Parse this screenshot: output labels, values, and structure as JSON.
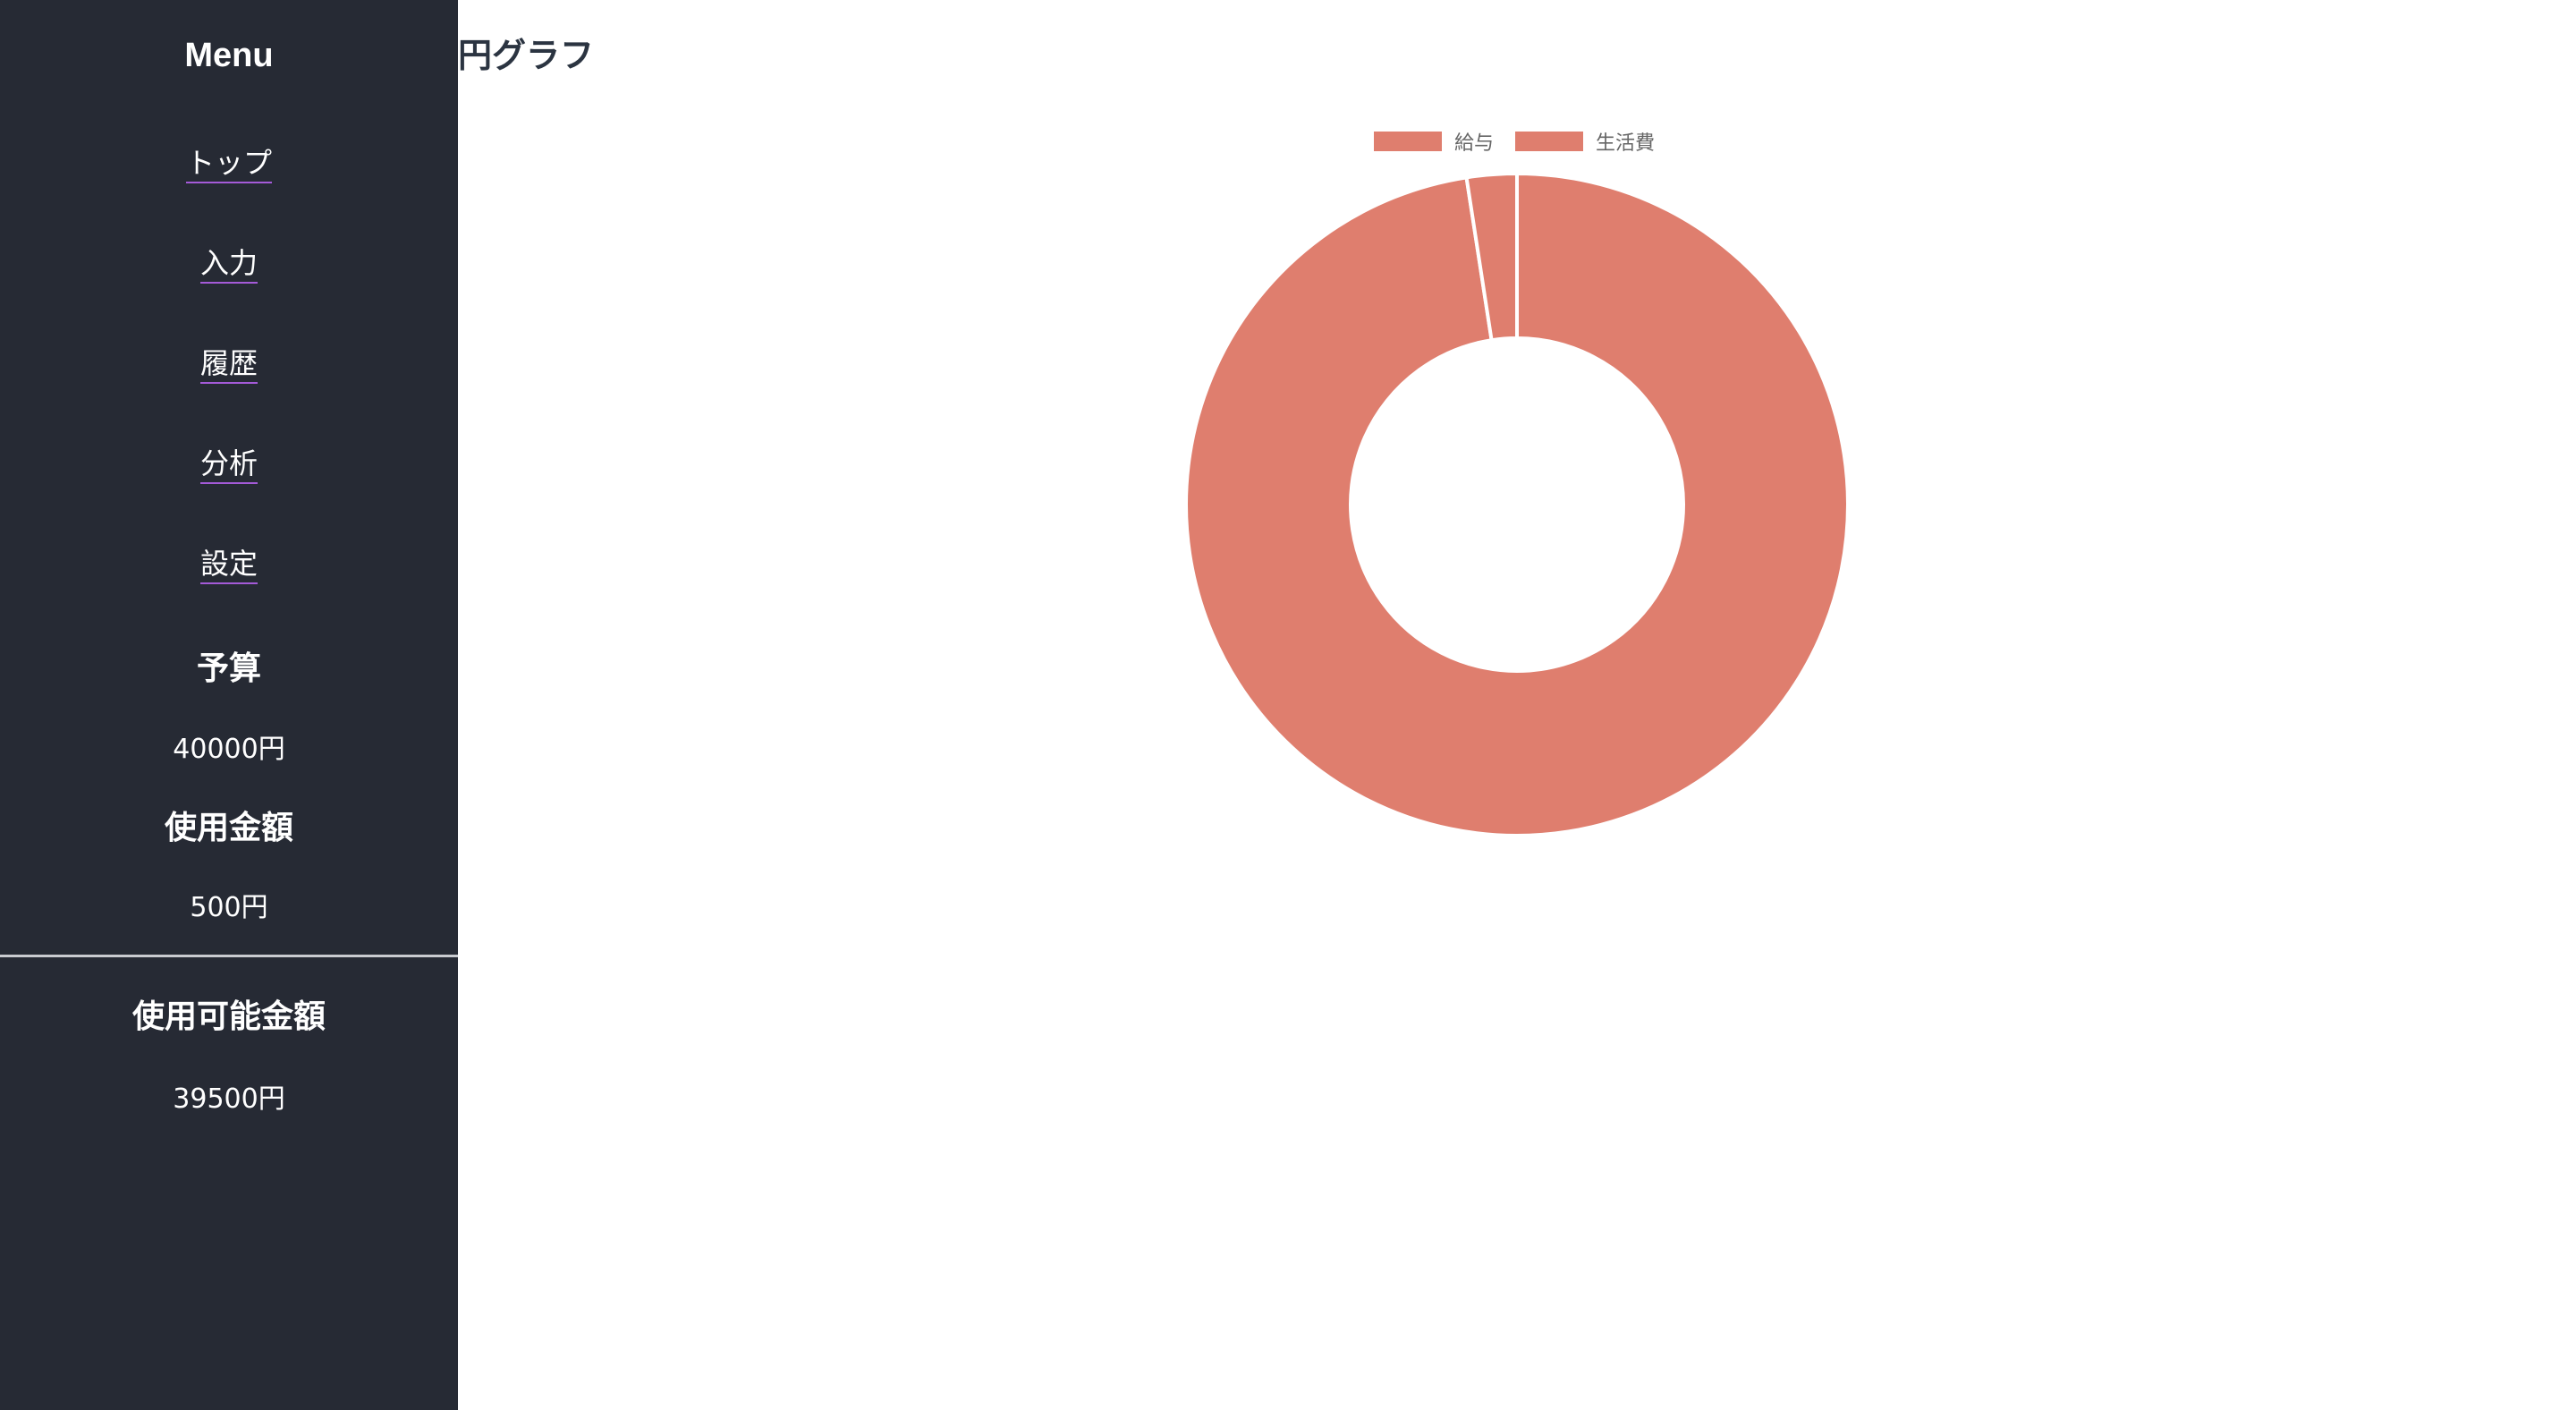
{
  "sidebar": {
    "title": "Menu",
    "items": [
      {
        "label": "トップ"
      },
      {
        "label": "入力"
      },
      {
        "label": "履歴"
      },
      {
        "label": "分析"
      },
      {
        "label": "設定"
      }
    ],
    "budget": {
      "heading": "予算",
      "value": "40000円"
    },
    "spent": {
      "heading": "使用金額",
      "value": "500円"
    },
    "available": {
      "heading": "使用可能金額",
      "value": "39500円"
    }
  },
  "main": {
    "title": "円グラフ"
  },
  "colors": {
    "sidebar_bg": "#262a34",
    "slice": "#df7e6e"
  },
  "chart_data": {
    "type": "pie",
    "style": "doughnut",
    "legend_position": "top",
    "categories": [
      "給与",
      "生活費"
    ],
    "values": [
      40000,
      1000
    ],
    "colors": [
      "#df7e6e",
      "#df7e6e"
    ]
  }
}
